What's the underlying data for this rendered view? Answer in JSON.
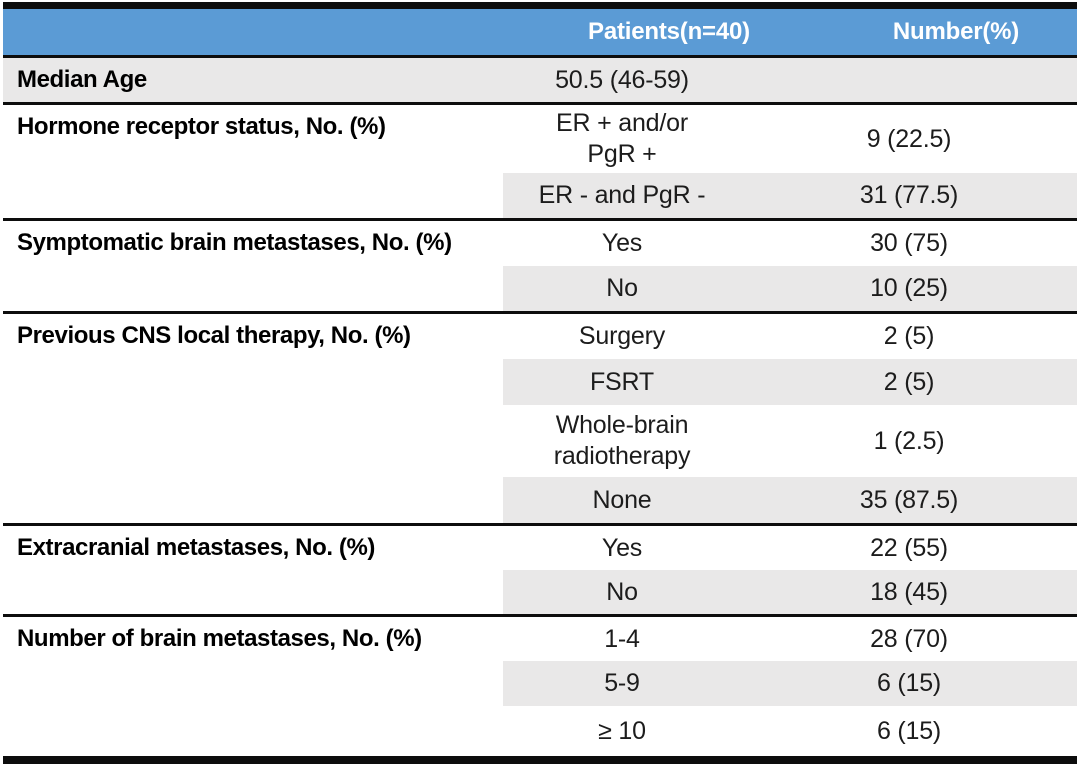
{
  "table": {
    "header": {
      "patients": "Patients(n=40)",
      "number": "Number(%)"
    },
    "groups": [
      {
        "label": "Median Age",
        "rows": [
          {
            "value": "50.5 (46-59)",
            "number": ""
          }
        ]
      },
      {
        "label": "Hormone receptor status, No. (%)",
        "rows": [
          {
            "value": "ER + and/or\nPgR +",
            "number": "9 (22.5)"
          },
          {
            "value": "ER - and PgR -",
            "number": "31 (77.5)"
          }
        ]
      },
      {
        "label": "Symptomatic brain metastases, No. (%)",
        "rows": [
          {
            "value": "Yes",
            "number": "30 (75)"
          },
          {
            "value": "No",
            "number": "10 (25)"
          }
        ]
      },
      {
        "label": "Previous CNS local therapy, No. (%)",
        "rows": [
          {
            "value": "Surgery",
            "number": "2 (5)"
          },
          {
            "value": "FSRT",
            "number": "2 (5)"
          },
          {
            "value": "Whole-brain\nradiotherapy",
            "number": "1 (2.5)"
          },
          {
            "value": "None",
            "number": "35 (87.5)"
          }
        ]
      },
      {
        "label": "Extracranial metastases, No. (%)",
        "rows": [
          {
            "value": "Yes",
            "number": "22 (55)"
          },
          {
            "value": "No",
            "number": "18 (45)"
          }
        ]
      },
      {
        "label": "Number of brain metastases, No. (%)",
        "rows": [
          {
            "value": "1-4",
            "number": "28 (70)"
          },
          {
            "value": "5-9",
            "number": "6 (15)"
          },
          {
            "value": "≥ 10",
            "number": "6 (15)"
          }
        ]
      }
    ]
  },
  "colors": {
    "header_bg": "#5B9BD5",
    "header_text": "#FFFFFF",
    "shaded_row_bg": "#E9E8E8",
    "rule": "#0D0D0D",
    "body_text": "#1C1C1C"
  }
}
